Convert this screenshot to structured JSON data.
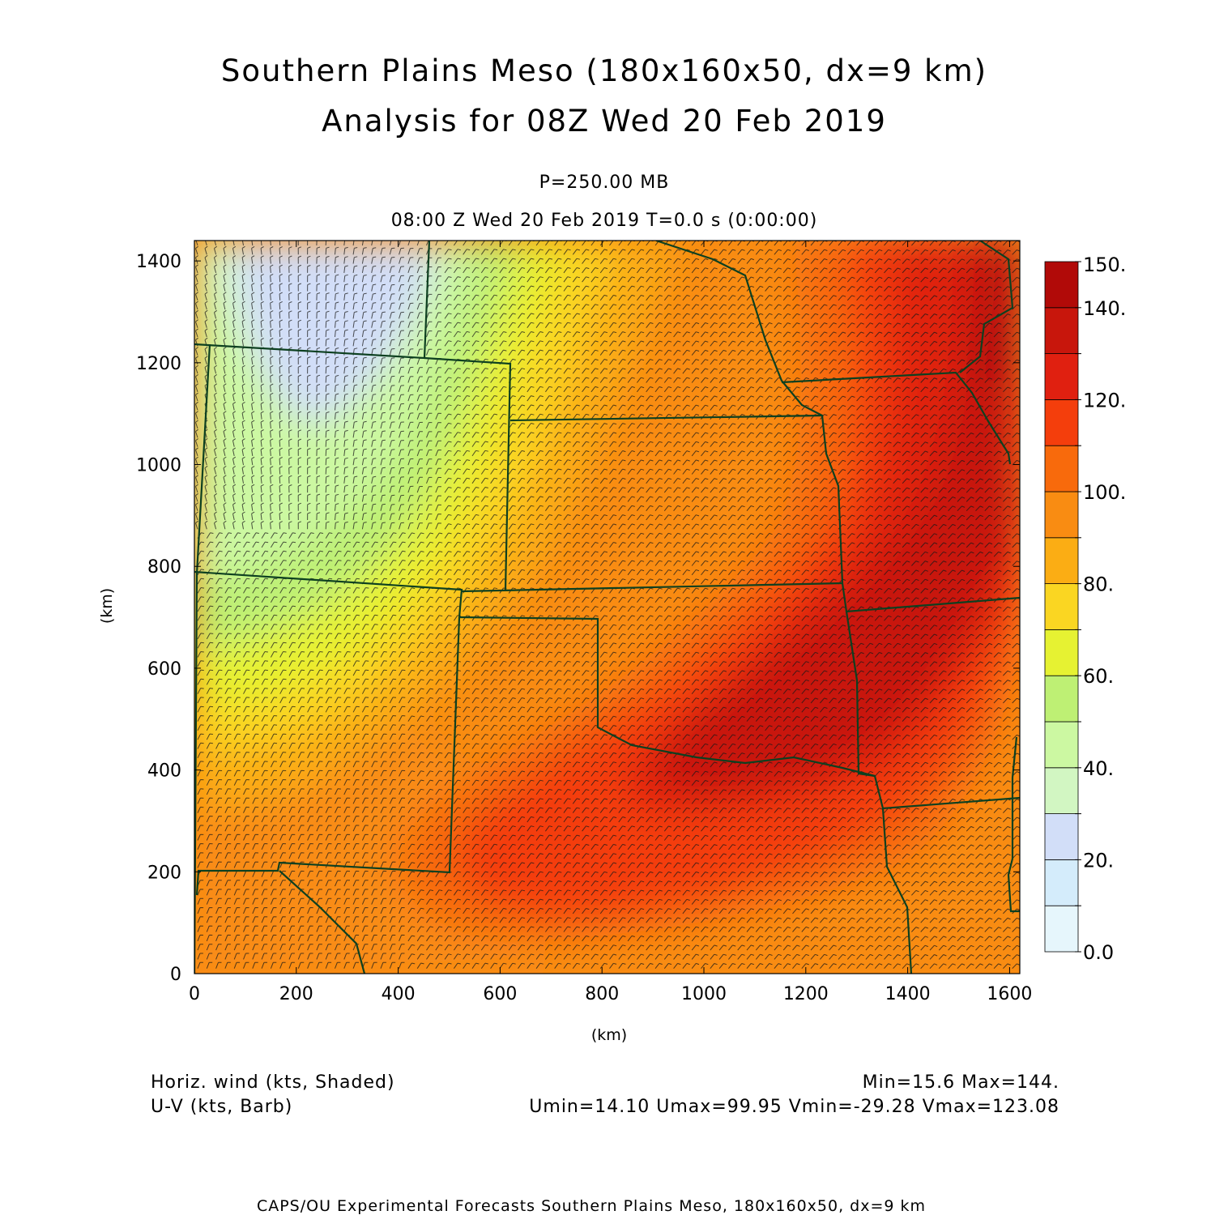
{
  "header": {
    "title_line1": "Southern Plains Meso (180x160x50, dx=9 km)",
    "title_line2": "Analysis for 08Z Wed 20 Feb 2019",
    "level": "P=250.00 MB",
    "time": "08:00 Z Wed 20 Feb 2019    T=0.0 s (0:00:00)"
  },
  "chart_data": {
    "type": "heatmap",
    "xlabel": "(km)",
    "ylabel": "(km)",
    "xlim": [
      0,
      1620
    ],
    "ylim": [
      0,
      1440
    ],
    "x_ticks": [
      "0",
      "200",
      "400",
      "600",
      "800",
      "1000",
      "1200",
      "1400",
      "1600"
    ],
    "y_ticks": [
      "0",
      "200",
      "400",
      "600",
      "800",
      "1000",
      "1200",
      "1400"
    ],
    "colorbar": {
      "labels": [
        "0.0",
        "20.",
        "40.",
        "60.",
        "80.",
        "100.",
        "120.",
        "140.",
        "150."
      ],
      "levels": [
        0,
        10,
        20,
        30,
        40,
        50,
        60,
        70,
        80,
        90,
        100,
        110,
        120,
        130,
        140,
        150
      ],
      "colors": [
        "#e6f6fc",
        "#d4ecfb",
        "#d2def8",
        "#d2f6c2",
        "#ccf8a2",
        "#bef074",
        "#e6f232",
        "#fad622",
        "#fbad14",
        "#f98c12",
        "#f86a0c",
        "#f43e0c",
        "#e02010",
        "#c8160c",
        "#b10a08"
      ]
    },
    "shaded_field": "Horiz. wind (kts, Shaded)",
    "vector_field": "U-V (kts, Barb)",
    "min": 15.6,
    "max": 144,
    "umin": 14.1,
    "umax": 99.95,
    "vmin": -29.28,
    "vmax": 123.08
  },
  "footer": {
    "left_line1": "Horiz. wind (kts, Shaded)",
    "left_line2": "U-V (kts, Barb)",
    "right_line1": "Min=15.6  Max=144.",
    "right_line2": "Umin=14.10  Umax=99.95  Vmin=-29.28  Vmax=123.08",
    "credit": "CAPS/OU Experimental Forecasts   Southern Plains Meso, 180x160x50, dx=9 km"
  }
}
